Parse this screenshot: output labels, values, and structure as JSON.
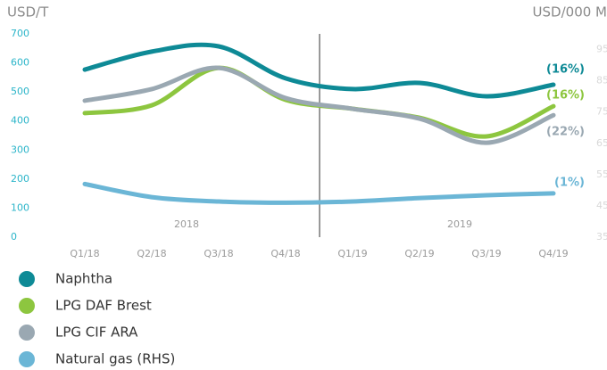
{
  "chart_data": {
    "type": "line",
    "ylabel": "USD/T",
    "y2label": "USD/000 M",
    "categories": [
      "Q1/18",
      "Q2/18",
      "Q3/18",
      "Q4/18",
      "Q1/19",
      "Q2/19",
      "Q3/19",
      "Q4/19"
    ],
    "year_labels": [
      "2018",
      "2019"
    ],
    "ylim": [
      0,
      700
    ],
    "yticks": [
      0,
      100,
      200,
      300,
      400,
      500,
      600,
      700
    ],
    "y2lim": [
      35,
      100
    ],
    "y2ticks": [
      35,
      45,
      55,
      65,
      75,
      85,
      95
    ],
    "series": [
      {
        "name": "Naphtha",
        "color": "#0e8a96",
        "values": [
          577,
          639,
          657,
          547,
          510,
          531,
          485,
          525
        ],
        "end_label": "(16%)"
      },
      {
        "name": "LPG DAF Brest",
        "color": "#8dc63f",
        "values": [
          427,
          454,
          583,
          473,
          442,
          411,
          347,
          451
        ],
        "end_label": "(16%)"
      },
      {
        "name": "LPG CIF ARA",
        "color": "#9aa8b2",
        "values": [
          470,
          510,
          583,
          479,
          442,
          408,
          325,
          420
        ],
        "end_label": "(22%)"
      },
      {
        "name": "Natural gas (RHS)",
        "color": "#6bb6d6",
        "axis": "y2",
        "values": [
          52,
          47.8,
          46.4,
          46,
          46.4,
          47.5,
          48.4,
          49
        ],
        "end_label": "(1%)"
      }
    ]
  }
}
